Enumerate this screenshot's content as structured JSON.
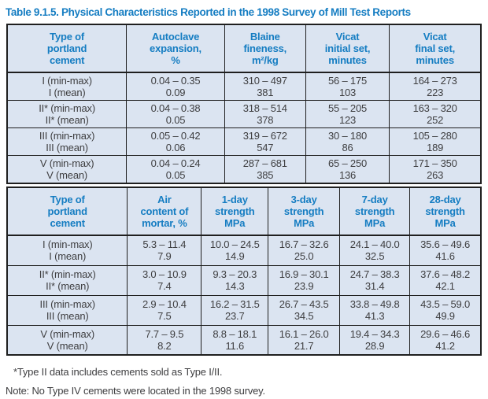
{
  "title": "Table 9.1.5. Physical Characteristics Reported in the 1998 Survey of Mill Test Reports",
  "colors": {
    "accent": "#157dc2",
    "cell_bg": "#dbe4f1",
    "text": "#3e3e40",
    "border": "#1f1f1f"
  },
  "tables": [
    {
      "id": "mill-test-table-physical",
      "columns": [
        [
          "Type of",
          "portland",
          "cement"
        ],
        [
          "Autoclave",
          "expansion,",
          "%"
        ],
        [
          "Blaine",
          "fineness,",
          "m²/kg"
        ],
        [
          "Vicat",
          "initial set,",
          "minutes"
        ],
        [
          "Vicat",
          "final set,",
          "minutes"
        ]
      ],
      "rows": [
        {
          "label": [
            "I (min-max)",
            "I (mean)"
          ],
          "cells": [
            [
              "0.04 – 0.35",
              "0.09"
            ],
            [
              "310 – 497",
              "381"
            ],
            [
              "56 – 175",
              "103"
            ],
            [
              "164 – 273",
              "223"
            ]
          ]
        },
        {
          "label": [
            "II* (min-max)",
            "II* (mean)"
          ],
          "cells": [
            [
              "0.04 – 0.38",
              "0.05"
            ],
            [
              "318 – 514",
              "378"
            ],
            [
              "55 – 205",
              "123"
            ],
            [
              "163 – 320",
              "252"
            ]
          ]
        },
        {
          "label": [
            "III (min-max)",
            "III (mean)"
          ],
          "cells": [
            [
              "0.05 – 0.42",
              "0.06"
            ],
            [
              "319 – 672",
              "547"
            ],
            [
              "30 – 180",
              "86"
            ],
            [
              "105 – 280",
              "189"
            ]
          ]
        },
        {
          "label": [
            "V (min-max)",
            "V (mean)"
          ],
          "cells": [
            [
              "0.04 – 0.24",
              "0.05"
            ],
            [
              "287 – 681",
              "385"
            ],
            [
              "65 – 250",
              "136"
            ],
            [
              "171 – 350",
              "263"
            ]
          ]
        }
      ]
    },
    {
      "id": "mill-test-table-strength",
      "columns": [
        [
          "Type of",
          "portland",
          "cement"
        ],
        [
          "Air",
          "content of",
          "mortar, %"
        ],
        [
          "1-day",
          "strength",
          "MPa"
        ],
        [
          "3-day",
          "strength",
          "MPa"
        ],
        [
          "7-day",
          "strength",
          "MPa"
        ],
        [
          "28-day",
          "strength",
          "MPa"
        ]
      ],
      "rows": [
        {
          "label": [
            "I (min-max)",
            "I (mean)"
          ],
          "cells": [
            [
              "5.3 – 11.4",
              "7.9"
            ],
            [
              "10.0 – 24.5",
              "14.9"
            ],
            [
              "16.7 – 32.6",
              "25.0"
            ],
            [
              "24.1 – 40.0",
              "32.5"
            ],
            [
              "35.6 – 49.6",
              "41.6"
            ]
          ]
        },
        {
          "label": [
            "II* (min-max)",
            "II* (mean)"
          ],
          "cells": [
            [
              "3.0 – 10.9",
              "7.4"
            ],
            [
              "9.3 – 20.3",
              "14.3"
            ],
            [
              "16.9 – 30.1",
              "23.9"
            ],
            [
              "24.7 – 38.3",
              "31.4"
            ],
            [
              "37.6 – 48.2",
              "42.1"
            ]
          ]
        },
        {
          "label": [
            "III (min-max)",
            "III (mean)"
          ],
          "cells": [
            [
              "2.9 – 10.4",
              "7.5"
            ],
            [
              "16.2 – 31.5",
              "23.7"
            ],
            [
              "26.7 – 43.5",
              "34.5"
            ],
            [
              "33.8 – 49.8",
              "41.3"
            ],
            [
              "43.5 – 59.0",
              "49.9"
            ]
          ]
        },
        {
          "label": [
            "V (min-max)",
            "V (mean)"
          ],
          "cells": [
            [
              "7.7 – 9.5",
              "8.2"
            ],
            [
              "8.8 – 18.1",
              "11.6"
            ],
            [
              "16.1 – 26.0",
              "21.7"
            ],
            [
              "19.4 – 34.3",
              "28.9"
            ],
            [
              "29.6 – 46.6",
              "41.2"
            ]
          ]
        }
      ]
    }
  ],
  "footnotes": [
    "*Type II data includes cements sold as Type I/II.",
    "Note: No Type IV cements were located in the 1998 survey."
  ]
}
